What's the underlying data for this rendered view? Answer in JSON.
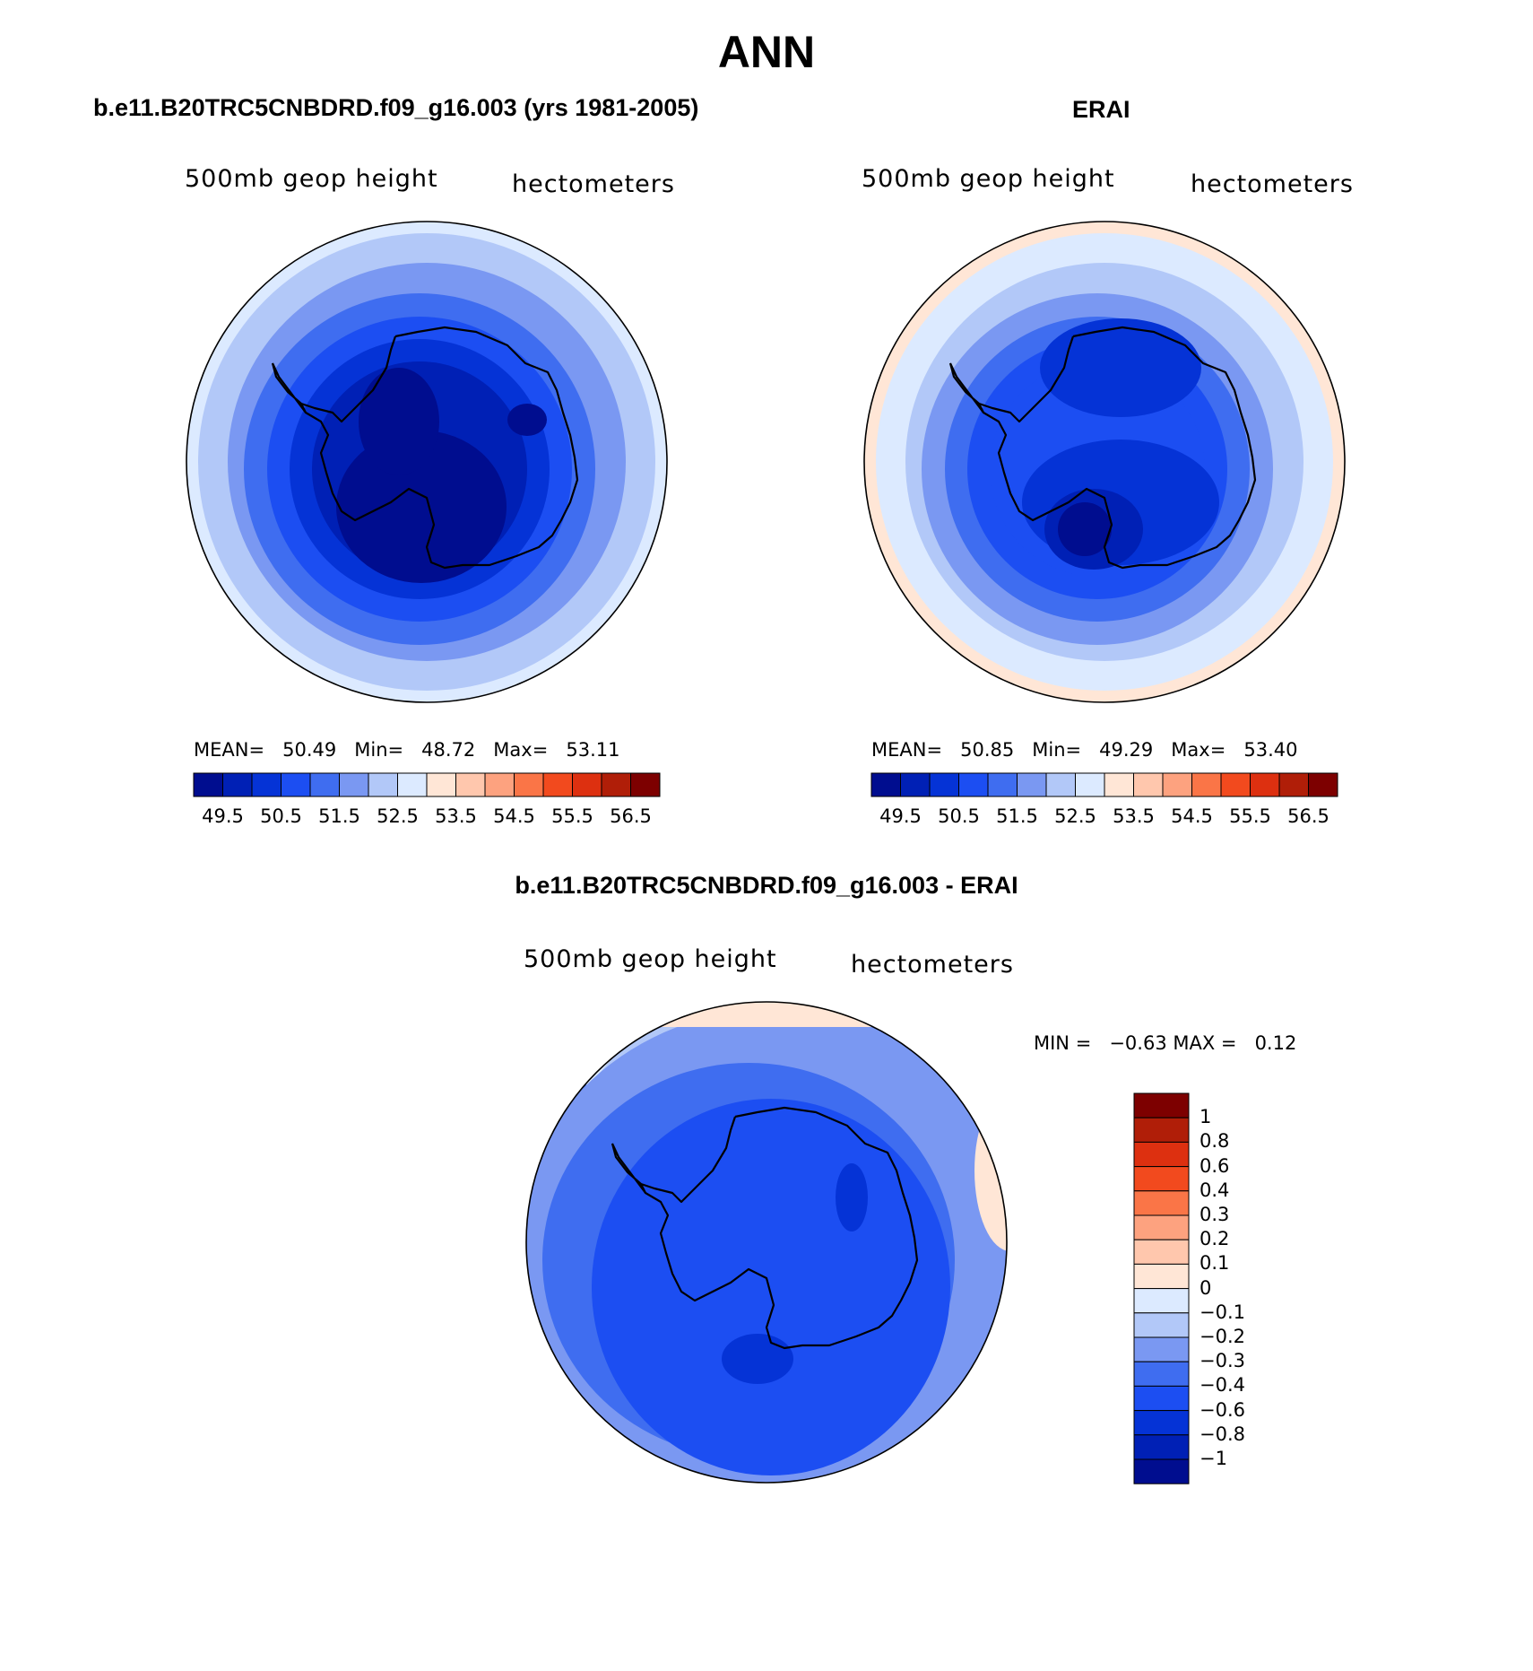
{
  "title": "ANN",
  "colors": {
    "abs_scale": [
      "#000d8f",
      "#0020b5",
      "#0533d6",
      "#1c4ef2",
      "#3f6df0",
      "#7a98f2",
      "#b2c8f8",
      "#dceaff",
      "#ffe6d6",
      "#ffc7ad",
      "#fda27f",
      "#fa7547",
      "#f24a1e",
      "#dd3010",
      "#b01e08",
      "#7d0000"
    ],
    "coast": "#000000"
  },
  "panels": [
    {
      "id": "model",
      "title": "b.e11.B20TRC5CNBDRD.f09_g16.003 (yrs 1981-2005)",
      "left_label": "500mb  geop  height",
      "right_label": "hectometers",
      "stats": {
        "mean_label": "MEAN=",
        "mean": "50.49",
        "min_label": "Min=",
        "min": "48.72",
        "max_label": "Max=",
        "max": "53.11"
      },
      "ticks": [
        "49.5",
        "50.5",
        "51.5",
        "52.5",
        "53.5",
        "54.5",
        "55.5",
        "56.5"
      ]
    },
    {
      "id": "obs",
      "title": "ERAI",
      "left_label": "500mb  geop  height",
      "right_label": "hectometers",
      "stats": {
        "mean_label": "MEAN=",
        "mean": "50.85",
        "min_label": "Min=",
        "min": "49.29",
        "max_label": "Max=",
        "max": "53.40"
      },
      "ticks": [
        "49.5",
        "50.5",
        "51.5",
        "52.5",
        "53.5",
        "54.5",
        "55.5",
        "56.5"
      ]
    }
  ],
  "diff": {
    "title": "b.e11.B20TRC5CNBDRD.f09_g16.003 - ERAI",
    "left_label": "500mb  geop  height",
    "right_label": "hectometers",
    "min_label": "MIN =",
    "min": "−0.63",
    "max_label": "MAX =",
    "max": "0.12",
    "legend_ticks": [
      "1",
      "0.8",
      "0.6",
      "0.4",
      "0.3",
      "0.2",
      "0.1",
      "0",
      "−0.1",
      "−0.2",
      "−0.3",
      "−0.4",
      "−0.6",
      "−0.8",
      "−1"
    ],
    "legend_colors_top_to_bottom": [
      "#7d0000",
      "#b01e08",
      "#dd3010",
      "#f24a1e",
      "#fa7547",
      "#fda27f",
      "#ffc7ad",
      "#ffe6d6",
      "#dceaff",
      "#b2c8f8",
      "#7a98f2",
      "#3f6df0",
      "#1c4ef2",
      "#0533d6",
      "#0020b5",
      "#000d8f"
    ]
  }
}
